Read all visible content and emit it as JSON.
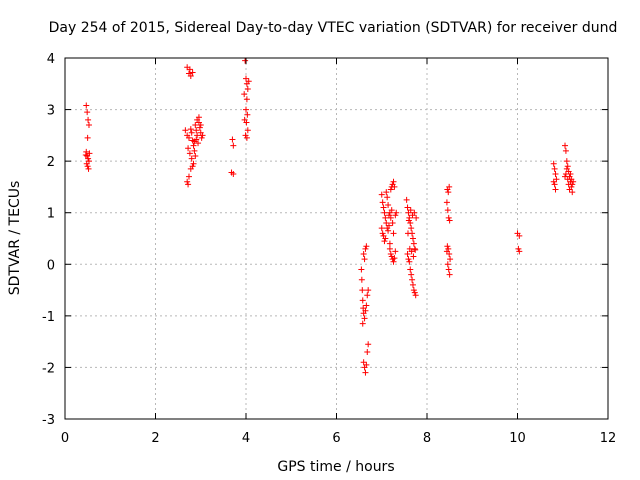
{
  "chart_data": {
    "type": "scatter",
    "title": "Day 254 of 2015, Sidereal Day-to-day VTEC variation (SDTVAR) for receiver dund",
    "xlabel": "GPS time / hours",
    "ylabel": "SDTVAR / TECUs",
    "xlim": [
      0,
      12
    ],
    "ylim": [
      -3,
      4
    ],
    "xticks": [
      "0",
      "2",
      "4",
      "6",
      "8",
      "10",
      "12"
    ],
    "yticks": [
      "-3",
      "-2",
      "-1",
      "0",
      "1",
      "2",
      "3",
      "4"
    ],
    "grid": true,
    "marker": "+",
    "color": "#ff0000",
    "series": [
      {
        "name": "SDTVAR",
        "points": [
          [
            0.47,
            3.08
          ],
          [
            0.49,
            2.95
          ],
          [
            0.51,
            2.8
          ],
          [
            0.53,
            2.7
          ],
          [
            0.5,
            2.45
          ],
          [
            0.47,
            2.18
          ],
          [
            0.49,
            2.1
          ],
          [
            0.51,
            2.05
          ],
          [
            0.53,
            2.0
          ],
          [
            0.48,
            1.95
          ],
          [
            0.5,
            1.9
          ],
          [
            0.52,
            1.85
          ],
          [
            0.46,
            2.12
          ],
          [
            0.54,
            2.15
          ],
          [
            2.7,
            3.82
          ],
          [
            2.74,
            3.7
          ],
          [
            2.78,
            3.65
          ],
          [
            2.82,
            3.72
          ],
          [
            2.76,
            3.78
          ],
          [
            2.66,
            2.6
          ],
          [
            2.7,
            2.5
          ],
          [
            2.74,
            2.45
          ],
          [
            2.78,
            2.62
          ],
          [
            2.8,
            2.55
          ],
          [
            2.82,
            2.4
          ],
          [
            2.84,
            2.3
          ],
          [
            2.86,
            2.2
          ],
          [
            2.88,
            2.7
          ],
          [
            2.9,
            2.6
          ],
          [
            2.92,
            2.5
          ],
          [
            2.94,
            2.35
          ],
          [
            2.96,
            2.75
          ],
          [
            2.98,
            2.65
          ],
          [
            3.0,
            2.55
          ],
          [
            3.02,
            2.45
          ],
          [
            3.04,
            2.5
          ],
          [
            2.72,
            2.25
          ],
          [
            2.76,
            2.15
          ],
          [
            2.8,
            2.05
          ],
          [
            2.84,
            1.95
          ],
          [
            2.88,
            2.1
          ],
          [
            2.92,
            2.8
          ],
          [
            2.96,
            2.85
          ],
          [
            3.0,
            2.7
          ],
          [
            2.7,
            1.6
          ],
          [
            2.72,
            1.55
          ],
          [
            2.74,
            1.7
          ],
          [
            2.78,
            1.85
          ],
          [
            2.82,
            1.9
          ],
          [
            2.86,
            2.38
          ],
          [
            2.9,
            2.42
          ],
          [
            3.7,
            2.42
          ],
          [
            3.72,
            2.3
          ],
          [
            3.68,
            1.78
          ],
          [
            3.72,
            1.75
          ],
          [
            3.98,
            3.95
          ],
          [
            4.0,
            3.6
          ],
          [
            4.02,
            3.5
          ],
          [
            4.04,
            3.4
          ],
          [
            3.96,
            3.3
          ],
          [
            4.02,
            3.2
          ],
          [
            4.0,
            3.0
          ],
          [
            4.03,
            2.9
          ],
          [
            3.97,
            2.8
          ],
          [
            4.01,
            2.75
          ],
          [
            4.04,
            2.6
          ],
          [
            3.99,
            2.5
          ],
          [
            4.02,
            2.45
          ],
          [
            4.06,
            3.55
          ],
          [
            6.55,
            -0.1
          ],
          [
            6.56,
            -0.3
          ],
          [
            6.57,
            -0.5
          ],
          [
            6.58,
            -0.7
          ],
          [
            6.59,
            -0.85
          ],
          [
            6.6,
            -0.95
          ],
          [
            6.62,
            -1.05
          ],
          [
            6.64,
            -0.9
          ],
          [
            6.66,
            -0.8
          ],
          [
            6.68,
            -0.6
          ],
          [
            6.7,
            -0.5
          ],
          [
            6.58,
            -1.15
          ],
          [
            6.6,
            -1.9
          ],
          [
            6.62,
            -2.0
          ],
          [
            6.64,
            -2.1
          ],
          [
            6.66,
            -1.95
          ],
          [
            6.68,
            -1.7
          ],
          [
            6.7,
            -1.55
          ],
          [
            6.62,
            0.1
          ],
          [
            6.64,
            0.3
          ],
          [
            6.66,
            0.35
          ],
          [
            6.6,
            0.2
          ],
          [
            7.0,
            1.35
          ],
          [
            7.02,
            1.2
          ],
          [
            7.04,
            1.1
          ],
          [
            7.06,
            1.0
          ],
          [
            7.08,
            0.9
          ],
          [
            7.1,
            0.8
          ],
          [
            7.12,
            0.7
          ],
          [
            7.14,
            0.65
          ],
          [
            7.16,
            0.75
          ],
          [
            7.0,
            0.7
          ],
          [
            7.02,
            0.6
          ],
          [
            7.04,
            0.55
          ],
          [
            7.06,
            0.45
          ],
          [
            7.08,
            0.5
          ],
          [
            7.1,
            1.4
          ],
          [
            7.12,
            1.3
          ],
          [
            7.14,
            1.15
          ],
          [
            7.16,
            0.95
          ],
          [
            7.18,
            0.3
          ],
          [
            7.2,
            0.2
          ],
          [
            7.22,
            0.15
          ],
          [
            7.24,
            0.1
          ],
          [
            7.26,
            0.05
          ],
          [
            7.28,
            0.12
          ],
          [
            7.2,
            1.45
          ],
          [
            7.22,
            1.5
          ],
          [
            7.24,
            1.55
          ],
          [
            7.26,
            1.6
          ],
          [
            7.28,
            1.5
          ],
          [
            7.18,
            1.0
          ],
          [
            7.2,
            0.9
          ],
          [
            7.22,
            1.05
          ],
          [
            7.24,
            0.8
          ],
          [
            7.26,
            0.6
          ],
          [
            7.3,
            0.95
          ],
          [
            7.32,
            1.0
          ],
          [
            7.18,
            0.4
          ],
          [
            7.3,
            0.25
          ],
          [
            7.55,
            1.25
          ],
          [
            7.57,
            1.1
          ],
          [
            7.59,
            1.0
          ],
          [
            7.61,
            0.9
          ],
          [
            7.63,
            0.8
          ],
          [
            7.65,
            0.7
          ],
          [
            7.67,
            0.6
          ],
          [
            7.69,
            0.5
          ],
          [
            7.71,
            0.4
          ],
          [
            7.73,
            0.3
          ],
          [
            7.57,
            0.2
          ],
          [
            7.59,
            0.1
          ],
          [
            7.61,
            0.05
          ],
          [
            7.63,
            -0.1
          ],
          [
            7.65,
            -0.2
          ],
          [
            7.67,
            -0.3
          ],
          [
            7.69,
            -0.4
          ],
          [
            7.71,
            -0.5
          ],
          [
            7.73,
            -0.55
          ],
          [
            7.75,
            -0.6
          ],
          [
            7.6,
            0.85
          ],
          [
            7.64,
            1.05
          ],
          [
            7.68,
            0.95
          ],
          [
            7.72,
            1.0
          ],
          [
            7.76,
            0.9
          ],
          [
            7.62,
            0.3
          ],
          [
            7.66,
            0.25
          ],
          [
            7.7,
            0.15
          ],
          [
            7.74,
            0.28
          ],
          [
            7.58,
            0.6
          ],
          [
            8.45,
            1.45
          ],
          [
            8.47,
            1.4
          ],
          [
            8.49,
            1.5
          ],
          [
            8.44,
            1.2
          ],
          [
            8.46,
            1.05
          ],
          [
            8.48,
            0.9
          ],
          [
            8.5,
            0.85
          ],
          [
            8.45,
            0.35
          ],
          [
            8.47,
            0.3
          ],
          [
            8.49,
            0.2
          ],
          [
            8.51,
            0.1
          ],
          [
            8.46,
            0.0
          ],
          [
            8.48,
            -0.1
          ],
          [
            8.5,
            -0.2
          ],
          [
            8.44,
            0.25
          ],
          [
            10.0,
            0.6
          ],
          [
            10.04,
            0.55
          ],
          [
            10.02,
            0.3
          ],
          [
            10.04,
            0.25
          ],
          [
            10.8,
            1.95
          ],
          [
            10.82,
            1.85
          ],
          [
            10.84,
            1.75
          ],
          [
            10.8,
            1.6
          ],
          [
            10.82,
            1.55
          ],
          [
            10.84,
            1.45
          ],
          [
            10.86,
            1.65
          ],
          [
            11.05,
            2.3
          ],
          [
            11.07,
            2.2
          ],
          [
            11.09,
            2.0
          ],
          [
            11.11,
            1.9
          ],
          [
            11.13,
            1.8
          ],
          [
            11.15,
            1.7
          ],
          [
            11.17,
            1.6
          ],
          [
            11.19,
            1.5
          ],
          [
            11.21,
            1.4
          ],
          [
            11.05,
            1.7
          ],
          [
            11.07,
            1.75
          ],
          [
            11.09,
            1.85
          ],
          [
            11.11,
            1.65
          ],
          [
            11.13,
            1.55
          ],
          [
            11.15,
            1.45
          ],
          [
            11.17,
            1.75
          ],
          [
            11.19,
            1.65
          ],
          [
            11.21,
            1.55
          ],
          [
            11.23,
            1.6
          ]
        ]
      }
    ]
  }
}
